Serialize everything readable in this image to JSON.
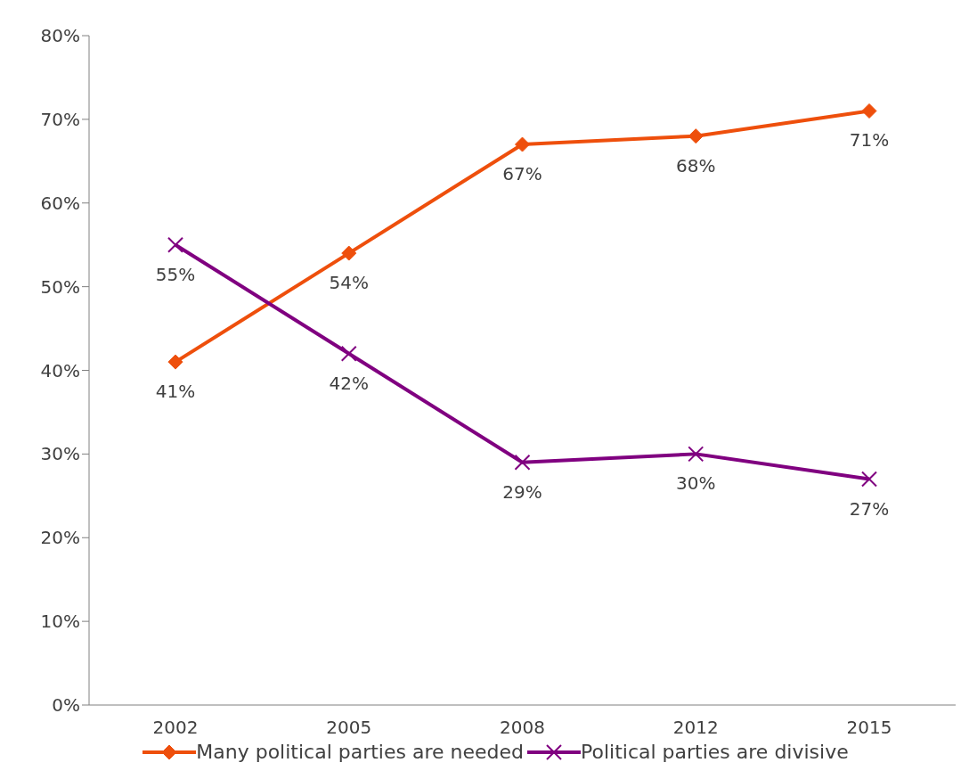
{
  "chart_data": {
    "type": "line",
    "categories": [
      "2002",
      "2005",
      "2008",
      "2012",
      "2015"
    ],
    "series": [
      {
        "name": "Many political parties are needed",
        "color": "#ee4f0c",
        "marker": "diamond",
        "values": [
          41,
          54,
          67,
          68,
          71
        ],
        "value_labels": [
          "41%",
          "54%",
          "67%",
          "68%",
          "71%"
        ]
      },
      {
        "name": "Political parties are divisive",
        "color": "#800080",
        "marker": "cross",
        "values": [
          55,
          42,
          29,
          30,
          27
        ],
        "value_labels": [
          "55%",
          "42%",
          "29%",
          "30%",
          "27%"
        ]
      }
    ],
    "ylim": [
      0,
      80
    ],
    "yticks": [
      {
        "value": 0,
        "label": "0%"
      },
      {
        "value": 10,
        "label": "10%"
      },
      {
        "value": 20,
        "label": "20%"
      },
      {
        "value": 30,
        "label": "30%"
      },
      {
        "value": 40,
        "label": "40%"
      },
      {
        "value": 50,
        "label": "50%"
      },
      {
        "value": 60,
        "label": "60%"
      },
      {
        "value": 70,
        "label": "70%"
      },
      {
        "value": 80,
        "label": "80%"
      }
    ],
    "grid": false,
    "legend": "bottom"
  }
}
